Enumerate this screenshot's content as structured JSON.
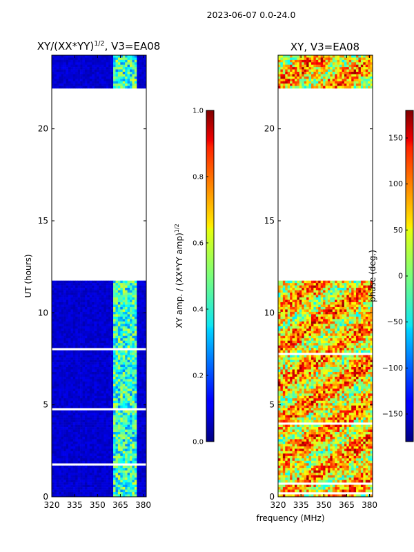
{
  "figure": {
    "suptitle": "2023-06-07 0.0-24.0",
    "xlabel": "frequency (MHz)",
    "ylabel": "UT (hours)"
  },
  "colors": {
    "background": "#ffffff",
    "frame": "#000000",
    "blank": "#ffffff"
  },
  "chart_data": [
    {
      "type": "heatmap",
      "title_main": "XY/(XX*YY)",
      "title_sup": "1/2",
      "title_tail": ", V3=EA08",
      "x_range": [
        320,
        382
      ],
      "y_range": [
        0,
        24
      ],
      "x_ticks": [
        320,
        335,
        350,
        365,
        380
      ],
      "y_ticks": [
        0,
        5,
        10,
        15,
        20
      ],
      "colormap": "jet",
      "color_range": [
        0.0,
        1.0
      ],
      "colorbar": {
        "label_main": "XY amp. / (XX*YY amp)",
        "label_sup": "1/2",
        "ticks": [
          "0.0",
          "0.2",
          "0.4",
          "0.6",
          "0.8",
          "1.0"
        ],
        "tick_values": [
          0.0,
          0.2,
          0.4,
          0.6,
          0.8,
          1.0
        ]
      },
      "data_blocks_ut": [
        [
          0.0,
          11.75
        ],
        [
          22.2,
          24.0
        ]
      ],
      "data_gaps_ut": [
        [
          11.75,
          22.2
        ]
      ],
      "bright_band_mhz": [
        360,
        376
      ],
      "background_level": 0.05,
      "band_level": 0.42
    },
    {
      "type": "heatmap",
      "title_main": "XY, V3=EA08",
      "x_range": [
        320,
        382
      ],
      "y_range": [
        0,
        24
      ],
      "x_ticks": [
        320,
        335,
        350,
        365,
        380
      ],
      "y_ticks": [
        0,
        5,
        10,
        15,
        20
      ],
      "colormap": "jet",
      "color_range": [
        -180,
        180
      ],
      "colorbar": {
        "label": "phase (deg.)",
        "ticks": [
          "150",
          "100",
          "50",
          "0",
          "−50",
          "−100",
          "−150"
        ],
        "tick_values": [
          150,
          100,
          50,
          0,
          -50,
          -100,
          -150
        ]
      },
      "data_blocks_ut": [
        [
          0.0,
          11.75
        ],
        [
          22.2,
          24.0
        ]
      ],
      "data_gaps_ut": [
        [
          11.75,
          22.2
        ]
      ],
      "phase_center_deg": 60
    }
  ]
}
